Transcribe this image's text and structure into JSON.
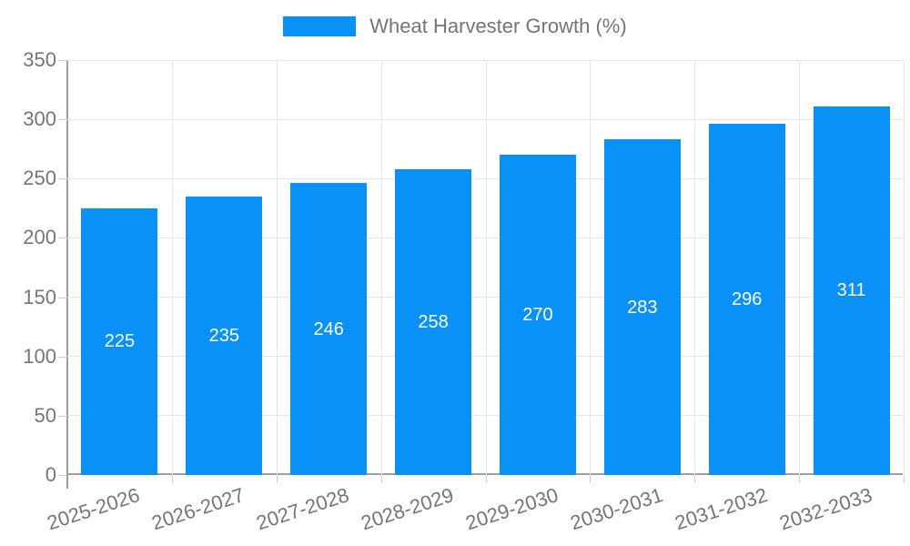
{
  "chart_data": {
    "type": "bar",
    "title": "Wheat Harvester Growth (%)",
    "categories": [
      "2025-2026",
      "2026-2027",
      "2027-2028",
      "2028-2029",
      "2029-2030",
      "2030-2031",
      "2031-2032",
      "2032-2033"
    ],
    "values": [
      225,
      235,
      246,
      258,
      270,
      283,
      296,
      311
    ],
    "xlabel": "",
    "ylabel": "",
    "ylim": [
      0,
      350
    ],
    "ytick_step": 50,
    "yticks": [
      0,
      50,
      100,
      150,
      200,
      250,
      300,
      350
    ],
    "grid": true,
    "legend_position": "top-center",
    "show_value_labels": true,
    "xtick_rotation_deg": -18
  },
  "colors": {
    "bar": "#0a91f7",
    "value_label": "#ffffff",
    "axis_line": "#9e9e9e",
    "gridline": "#e6e6e6",
    "tick_mark": "#cccccc",
    "tick_label": "#757575",
    "legend_text": "#757575",
    "background": "#ffffff"
  }
}
